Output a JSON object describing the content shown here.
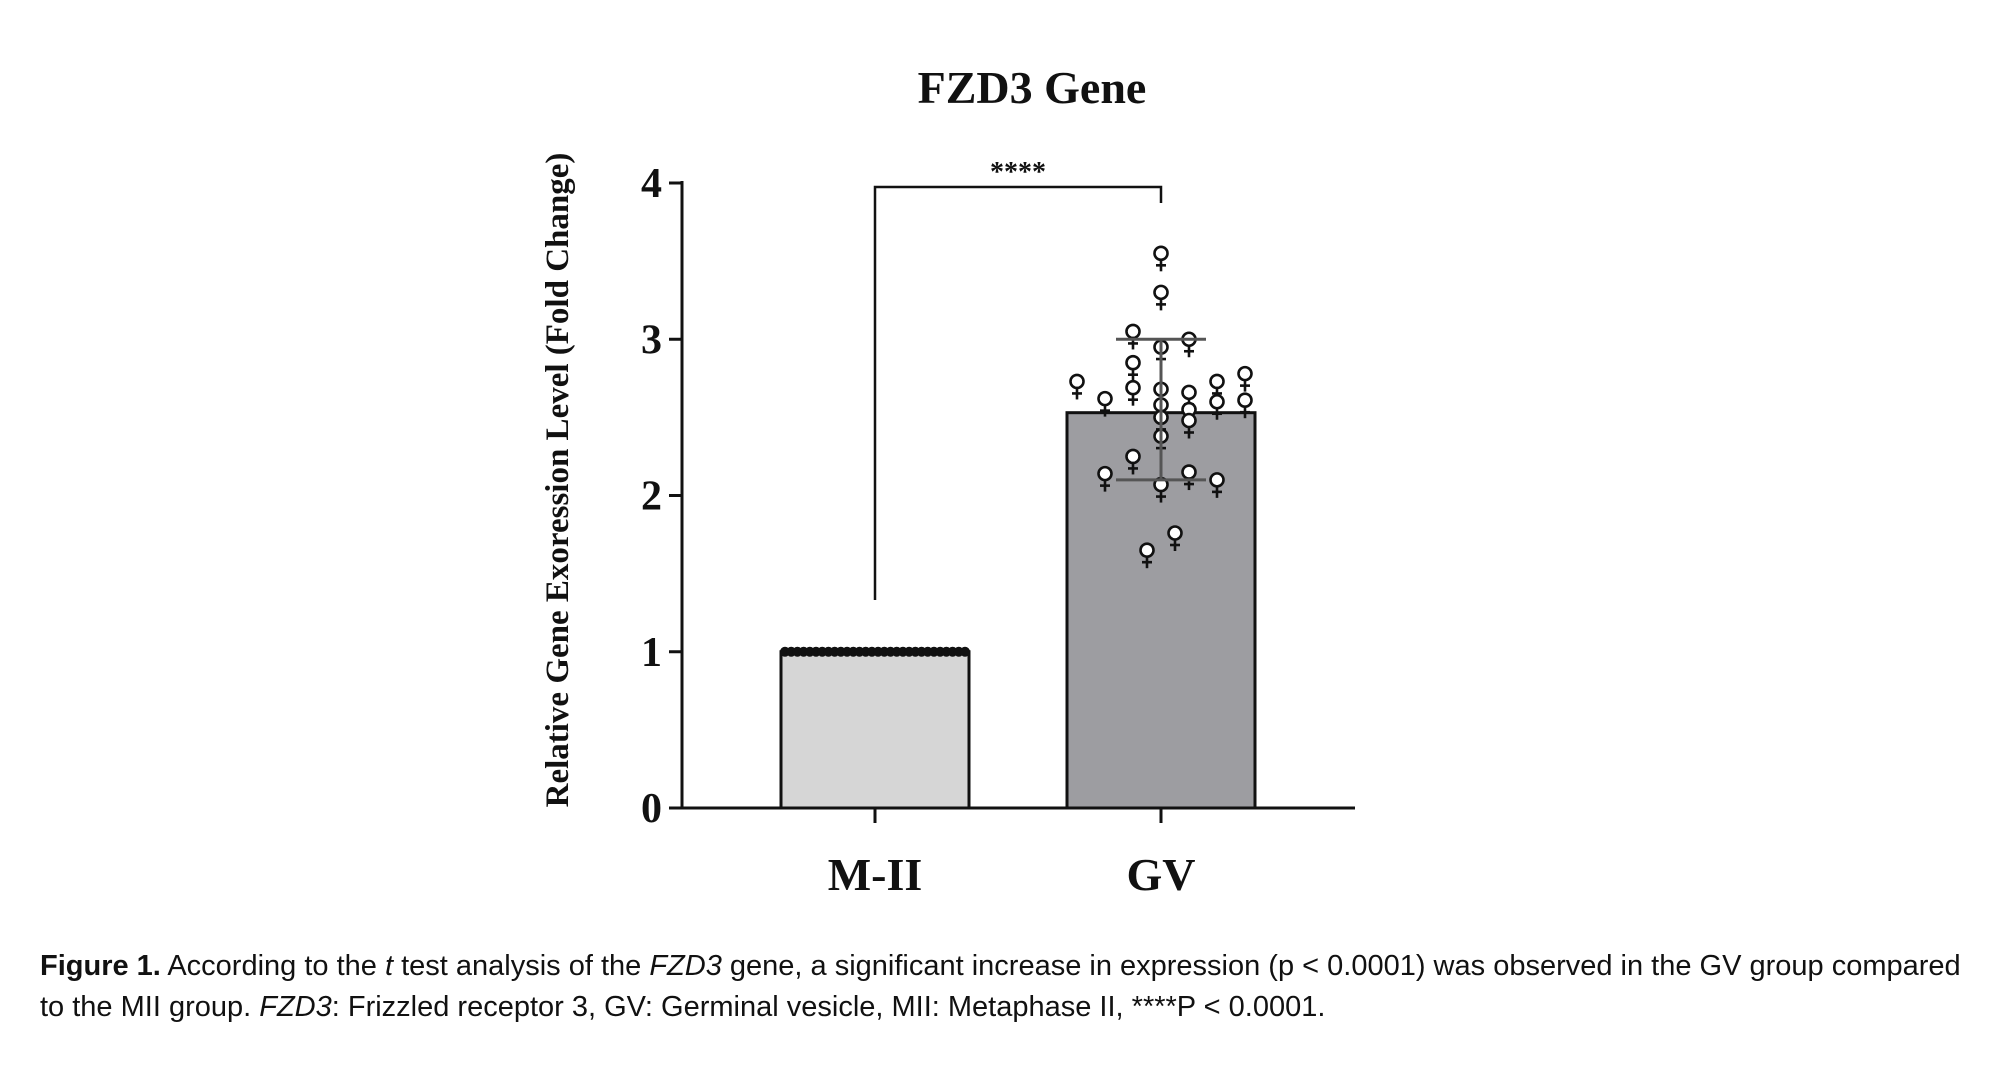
{
  "chart_data": {
    "type": "bar",
    "title": "FZD3 Gene",
    "xlabel": "",
    "ylabel": "Relative Gene Exoression Level (Fold Change)",
    "ylim": [
      0,
      4
    ],
    "yticks": [
      "0",
      "1",
      "2",
      "3",
      "4"
    ],
    "categories": [
      "M-II",
      "GV"
    ],
    "values": [
      1.0,
      2.53
    ],
    "error_bars": [
      {
        "low": 1.0,
        "high": 1.0
      },
      {
        "low": 2.1,
        "high": 3.0
      }
    ],
    "colors": [
      "#d6d6d6",
      "#9d9da1"
    ],
    "individual_points": {
      "M-II": [
        1.0,
        1.0,
        1.0,
        1.0,
        1.0,
        1.0,
        1.0,
        1.0,
        1.0,
        1.0,
        1.0,
        1.0,
        1.0,
        1.0,
        1.0,
        1.0,
        1.0,
        1.0,
        1.0,
        1.0,
        1.0,
        1.0,
        1.0,
        1.0,
        1.0,
        1.0,
        1.0,
        1.0,
        1.0,
        1.0
      ],
      "GV": [
        3.55,
        3.3,
        3.05,
        3.0,
        2.95,
        2.85,
        2.78,
        2.73,
        2.73,
        2.69,
        2.68,
        2.66,
        2.62,
        2.61,
        2.6,
        2.58,
        2.55,
        2.5,
        2.48,
        2.38,
        2.25,
        2.15,
        2.14,
        2.1,
        2.07,
        1.76,
        1.65
      ]
    },
    "significance": {
      "label": "****",
      "between": [
        "M-II",
        "GV"
      ]
    },
    "grid": false,
    "legend": "none"
  },
  "caption": {
    "label": "Figure 1.",
    "t1": " According to the ",
    "t_italic": "t",
    "t2": " test analysis of the ",
    "gene1": "FZD3",
    "t3": " gene, a significant increase in expression (p < 0.0001) was observed in the GV group compared to the MII group. ",
    "gene2": "FZD3",
    "t4": ": Frizzled receptor 3, GV: Germinal vesicle, MII: Metaphase II, ****P < 0.0001."
  }
}
